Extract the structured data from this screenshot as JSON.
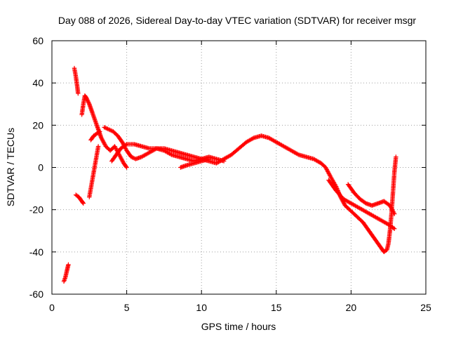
{
  "chart_data": {
    "type": "scatter",
    "title": "Day 088 of 2026, Sidereal Day-to-day VTEC variation (SDTVAR) for receiver msgr",
    "xlabel": "GPS time / hours",
    "ylabel": "SDTVAR / TECUs",
    "xlim": [
      0,
      25
    ],
    "ylim": [
      -60,
      60
    ],
    "xticks": [
      0,
      5,
      10,
      15,
      20,
      25
    ],
    "yticks": [
      -60,
      -40,
      -20,
      0,
      20,
      40,
      60
    ],
    "grid": true,
    "marker": "+",
    "series_color": "#ff0000",
    "series": [
      {
        "name": "track-a",
        "points": [
          [
            0.8,
            -54
          ],
          [
            0.9,
            -52
          ],
          [
            1.0,
            -49
          ],
          [
            1.1,
            -46
          ]
        ]
      },
      {
        "name": "track-b",
        "points": [
          [
            1.5,
            47
          ],
          [
            1.6,
            43
          ],
          [
            1.7,
            38
          ],
          [
            1.75,
            35
          ]
        ]
      },
      {
        "name": "track-c",
        "points": [
          [
            1.6,
            -13
          ],
          [
            1.8,
            -14
          ],
          [
            2.0,
            -16
          ],
          [
            2.1,
            -17
          ]
        ]
      },
      {
        "name": "track-d",
        "points": [
          [
            2.0,
            25
          ],
          [
            2.1,
            30
          ],
          [
            2.2,
            34
          ],
          [
            2.3,
            33
          ],
          [
            2.5,
            30
          ],
          [
            2.7,
            26
          ],
          [
            2.9,
            22
          ],
          [
            3.1,
            18
          ],
          [
            3.3,
            14
          ],
          [
            3.6,
            10
          ],
          [
            3.9,
            8
          ],
          [
            4.2,
            10
          ],
          [
            4.5,
            6
          ],
          [
            4.8,
            2
          ],
          [
            5.0,
            0
          ]
        ]
      },
      {
        "name": "track-e",
        "points": [
          [
            2.5,
            -14
          ],
          [
            2.6,
            -10
          ],
          [
            2.7,
            -6
          ],
          [
            2.8,
            -2
          ],
          [
            2.9,
            2
          ],
          [
            3.0,
            6
          ],
          [
            3.1,
            10
          ]
        ]
      },
      {
        "name": "track-f",
        "points": [
          [
            2.6,
            13
          ],
          [
            2.8,
            15
          ],
          [
            3.0,
            16
          ],
          [
            3.2,
            17
          ]
        ]
      },
      {
        "name": "track-g",
        "points": [
          [
            3.5,
            19
          ],
          [
            3.8,
            18
          ],
          [
            4.1,
            17
          ],
          [
            4.4,
            15
          ],
          [
            4.7,
            12
          ],
          [
            5.0,
            8
          ],
          [
            5.3,
            5
          ],
          [
            5.6,
            4
          ],
          [
            6.0,
            5
          ],
          [
            6.5,
            7
          ],
          [
            7.0,
            9
          ],
          [
            7.5,
            9
          ],
          [
            8.0,
            8
          ],
          [
            8.5,
            7
          ],
          [
            9.0,
            6
          ],
          [
            9.5,
            5
          ],
          [
            10.0,
            4
          ],
          [
            10.5,
            3
          ],
          [
            11.0,
            2
          ],
          [
            11.5,
            4
          ],
          [
            12.0,
            6
          ],
          [
            12.5,
            9
          ],
          [
            13.0,
            12
          ],
          [
            13.5,
            14
          ],
          [
            14.0,
            15
          ],
          [
            14.5,
            14
          ],
          [
            15.0,
            12
          ],
          [
            15.5,
            10
          ],
          [
            16.0,
            8
          ],
          [
            16.5,
            6
          ],
          [
            17.0,
            5
          ],
          [
            17.5,
            4
          ],
          [
            18.0,
            2
          ],
          [
            18.3,
            0
          ],
          [
            18.6,
            -4
          ],
          [
            19.0,
            -9
          ],
          [
            19.3,
            -14
          ],
          [
            19.6,
            -18
          ],
          [
            19.9,
            -20
          ],
          [
            20.2,
            -22
          ],
          [
            20.5,
            -24
          ],
          [
            20.8,
            -26
          ],
          [
            21.1,
            -29
          ],
          [
            21.4,
            -32
          ],
          [
            21.7,
            -35
          ],
          [
            22.0,
            -38
          ],
          [
            22.2,
            -40
          ],
          [
            22.4,
            -39
          ],
          [
            22.5,
            -36
          ],
          [
            22.6,
            -30
          ],
          [
            22.7,
            -22
          ],
          [
            22.8,
            -12
          ],
          [
            22.9,
            -2
          ],
          [
            23.0,
            5
          ]
        ]
      },
      {
        "name": "track-h",
        "points": [
          [
            4.0,
            3
          ],
          [
            4.3,
            6
          ],
          [
            4.6,
            9
          ],
          [
            5.0,
            11
          ],
          [
            5.5,
            11
          ],
          [
            6.0,
            10
          ],
          [
            6.5,
            9
          ],
          [
            7.0,
            9
          ],
          [
            7.5,
            8
          ],
          [
            8.0,
            6
          ],
          [
            8.5,
            5
          ],
          [
            9.0,
            4
          ],
          [
            9.5,
            3
          ],
          [
            10.0,
            4
          ],
          [
            10.5,
            5
          ],
          [
            11.0,
            4
          ],
          [
            11.5,
            3
          ]
        ]
      },
      {
        "name": "track-i",
        "points": [
          [
            8.6,
            0
          ],
          [
            9.0,
            1
          ],
          [
            9.5,
            2
          ],
          [
            10.0,
            3
          ],
          [
            10.5,
            4
          ]
        ]
      },
      {
        "name": "track-j",
        "points": [
          [
            18.5,
            -6
          ],
          [
            19.0,
            -11
          ],
          [
            19.5,
            -15
          ],
          [
            20.0,
            -17
          ],
          [
            20.5,
            -19
          ],
          [
            21.0,
            -21
          ],
          [
            21.5,
            -23
          ],
          [
            22.0,
            -25
          ],
          [
            22.5,
            -27
          ],
          [
            22.9,
            -29
          ]
        ]
      },
      {
        "name": "track-k",
        "points": [
          [
            19.8,
            -8
          ],
          [
            20.2,
            -12
          ],
          [
            20.6,
            -15
          ],
          [
            21.0,
            -17
          ],
          [
            21.4,
            -18
          ],
          [
            21.8,
            -17
          ],
          [
            22.2,
            -16
          ],
          [
            22.6,
            -18
          ],
          [
            22.9,
            -22
          ]
        ]
      }
    ]
  }
}
